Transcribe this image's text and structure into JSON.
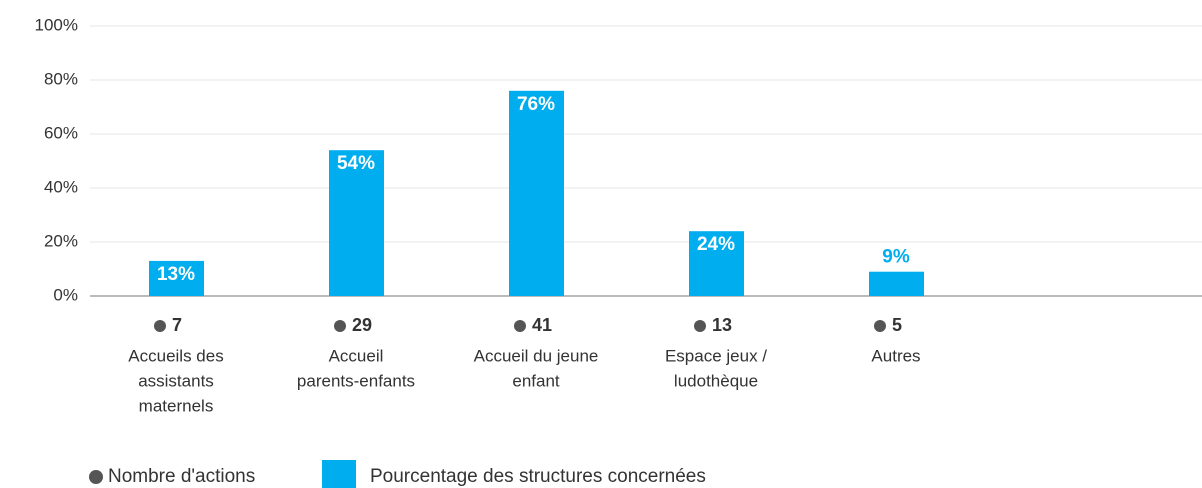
{
  "chart_data": {
    "type": "bar",
    "categories": [
      [
        "Accueils des",
        "assistants",
        "maternels"
      ],
      [
        "Accueil",
        "parents-enfants"
      ],
      [
        "Accueil du jeune",
        "enfant"
      ],
      [
        "Espace jeux /",
        "ludothèque"
      ],
      [
        "Autres"
      ]
    ],
    "series": [
      {
        "name": "Pourcentage des structures concernées",
        "color": "#00aeef",
        "values": [
          13,
          54,
          76,
          24,
          9
        ],
        "value_labels": [
          "13%",
          "54%",
          "76%",
          "24%",
          "9%"
        ]
      },
      {
        "name": "Nombre d'actions",
        "color": "#555555",
        "values": [
          7,
          29,
          41,
          13,
          5
        ]
      }
    ],
    "ylim": [
      0,
      100
    ],
    "yticks": [
      {
        "value": 0,
        "label": "0%"
      },
      {
        "value": 20,
        "label": "20%"
      },
      {
        "value": 40,
        "label": "40%"
      },
      {
        "value": 60,
        "label": "60%"
      },
      {
        "value": 80,
        "label": "80%"
      },
      {
        "value": 100,
        "label": "100%"
      }
    ],
    "grid": true
  }
}
